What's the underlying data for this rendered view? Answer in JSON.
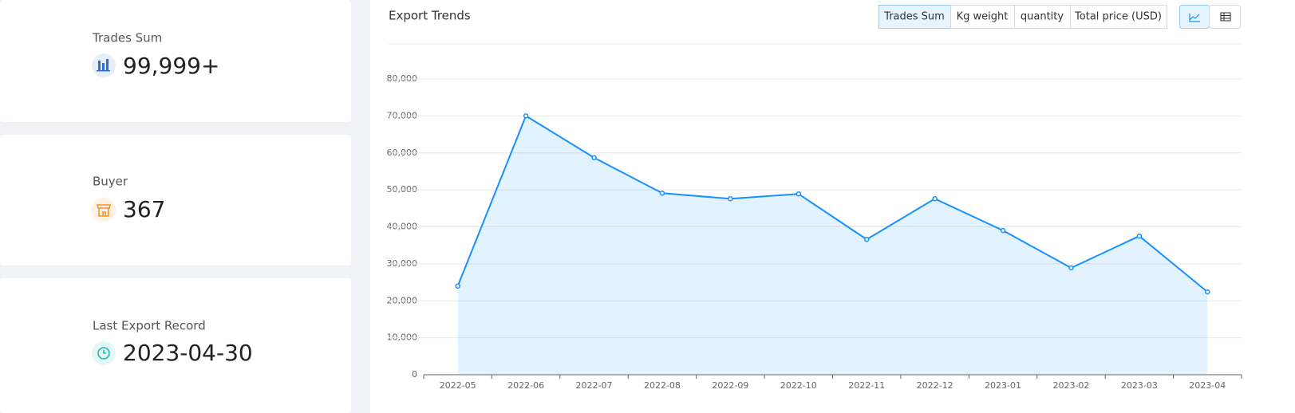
{
  "cards": [
    {
      "label": "Trades Sum",
      "value": "99,999+"
    },
    {
      "label": "Buyer",
      "value": 367
    },
    {
      "label": "Last Export Record",
      "value": "2023-04-30"
    }
  ],
  "tabs": [
    "Trades Sum",
    "Kg weight",
    "quantity",
    "Total price (USD)"
  ],
  "chart_data": {
    "type": "line",
    "title": "Export Trends",
    "categories": [
      "2022-05",
      "2022-06",
      "2022-07",
      "2022-08",
      "2022-09",
      "2022-10",
      "2022-11",
      "2022-12",
      "2023-01",
      "2023-02",
      "2023-03",
      "2023-04"
    ],
    "values": [
      24000,
      70000,
      58700,
      49100,
      47600,
      48900,
      36600,
      47600,
      39000,
      28900,
      37500,
      22400
    ],
    "color": "#1890ff",
    "area": true,
    "grid": true,
    "ylim": [
      0,
      80000
    ],
    "yticks": [
      0,
      {
        "value": 10000,
        "label": "10,000"
      },
      {
        "value": 20000,
        "label": "20,000"
      },
      {
        "value": 30000,
        "label": "30,000"
      },
      {
        "value": 40000,
        "label": "40,000"
      },
      {
        "value": 50000,
        "label": "50,000"
      },
      {
        "value": 60000,
        "label": "60,000"
      },
      {
        "value": 70000,
        "label": "70,000"
      },
      {
        "value": 80000,
        "label": "80,000"
      }
    ]
  }
}
